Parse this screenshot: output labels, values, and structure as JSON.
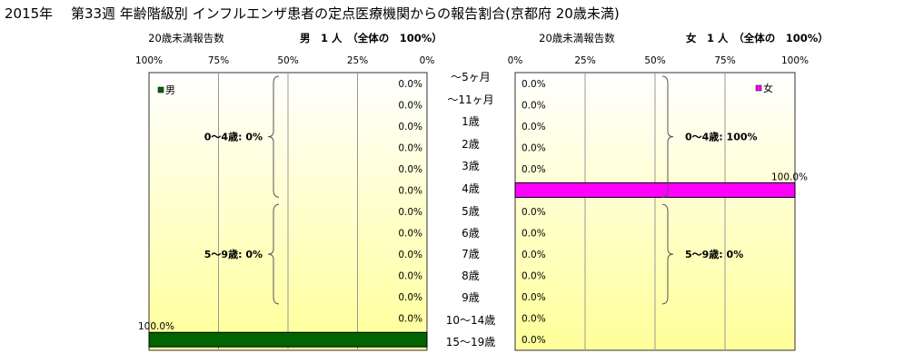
{
  "title": "2015年　 第33週 年齢階級別 インフルエンザ患者の定点医療機関からの報告割合(京都府 20歳未満)",
  "colors": {
    "male": "#006400",
    "female": "#ff00ff",
    "plot_bg_top": "#ffffff",
    "plot_bg_bottom": "#ffff99"
  },
  "chart_data": [
    {
      "type": "bar",
      "orientation": "horizontal",
      "direction": "right-to-left",
      "header_left": "20歳未満報告数",
      "header_right": "男　1 人　（全体の　100%）",
      "x_ticks": [
        "100%",
        "75%",
        "50%",
        "25%",
        "0%"
      ],
      "xlim": [
        0,
        100
      ],
      "legend": "男",
      "legend_placement": "top-left",
      "categories": [
        "〜5ヶ月",
        "〜11ヶ月",
        "1歳",
        "2歳",
        "3歳",
        "4歳",
        "5歳",
        "6歳",
        "7歳",
        "8歳",
        "9歳",
        "10〜14歳",
        "15〜19歳"
      ],
      "values": [
        0,
        0,
        0,
        0,
        0,
        0,
        0,
        0,
        0,
        0,
        0,
        0,
        100
      ],
      "value_labels": [
        "0.0%",
        "0.0%",
        "0.0%",
        "0.0%",
        "0.0%",
        "0.0%",
        "0.0%",
        "0.0%",
        "0.0%",
        "0.0%",
        "0.0%",
        "0.0%",
        "100.0%"
      ],
      "groups": [
        {
          "label": "0〜4歳: 0%",
          "from": 0,
          "to": 5
        },
        {
          "label": "5〜9歳: 0%",
          "from": 6,
          "to": 10
        }
      ]
    },
    {
      "type": "bar",
      "orientation": "horizontal",
      "direction": "left-to-right",
      "header_left": "20歳未満報告数",
      "header_right": "女　1 人　（全体の　100%）",
      "x_ticks": [
        "0%",
        "25%",
        "50%",
        "75%",
        "100%"
      ],
      "xlim": [
        0,
        100
      ],
      "legend": "女",
      "legend_placement": "top-right",
      "categories": [
        "〜5ヶ月",
        "〜11ヶ月",
        "1歳",
        "2歳",
        "3歳",
        "4歳",
        "5歳",
        "6歳",
        "7歳",
        "8歳",
        "9歳",
        "10〜14歳",
        "15〜19歳"
      ],
      "values": [
        0,
        0,
        0,
        0,
        0,
        100,
        0,
        0,
        0,
        0,
        0,
        0,
        0
      ],
      "value_labels": [
        "0.0%",
        "0.0%",
        "0.0%",
        "0.0%",
        "0.0%",
        "100.0%",
        "0.0%",
        "0.0%",
        "0.0%",
        "0.0%",
        "0.0%",
        "0.0%",
        "0.0%"
      ],
      "groups": [
        {
          "label": "0〜4歳: 100%",
          "from": 0,
          "to": 5
        },
        {
          "label": "5〜9歳: 0%",
          "from": 6,
          "to": 10
        }
      ]
    }
  ]
}
